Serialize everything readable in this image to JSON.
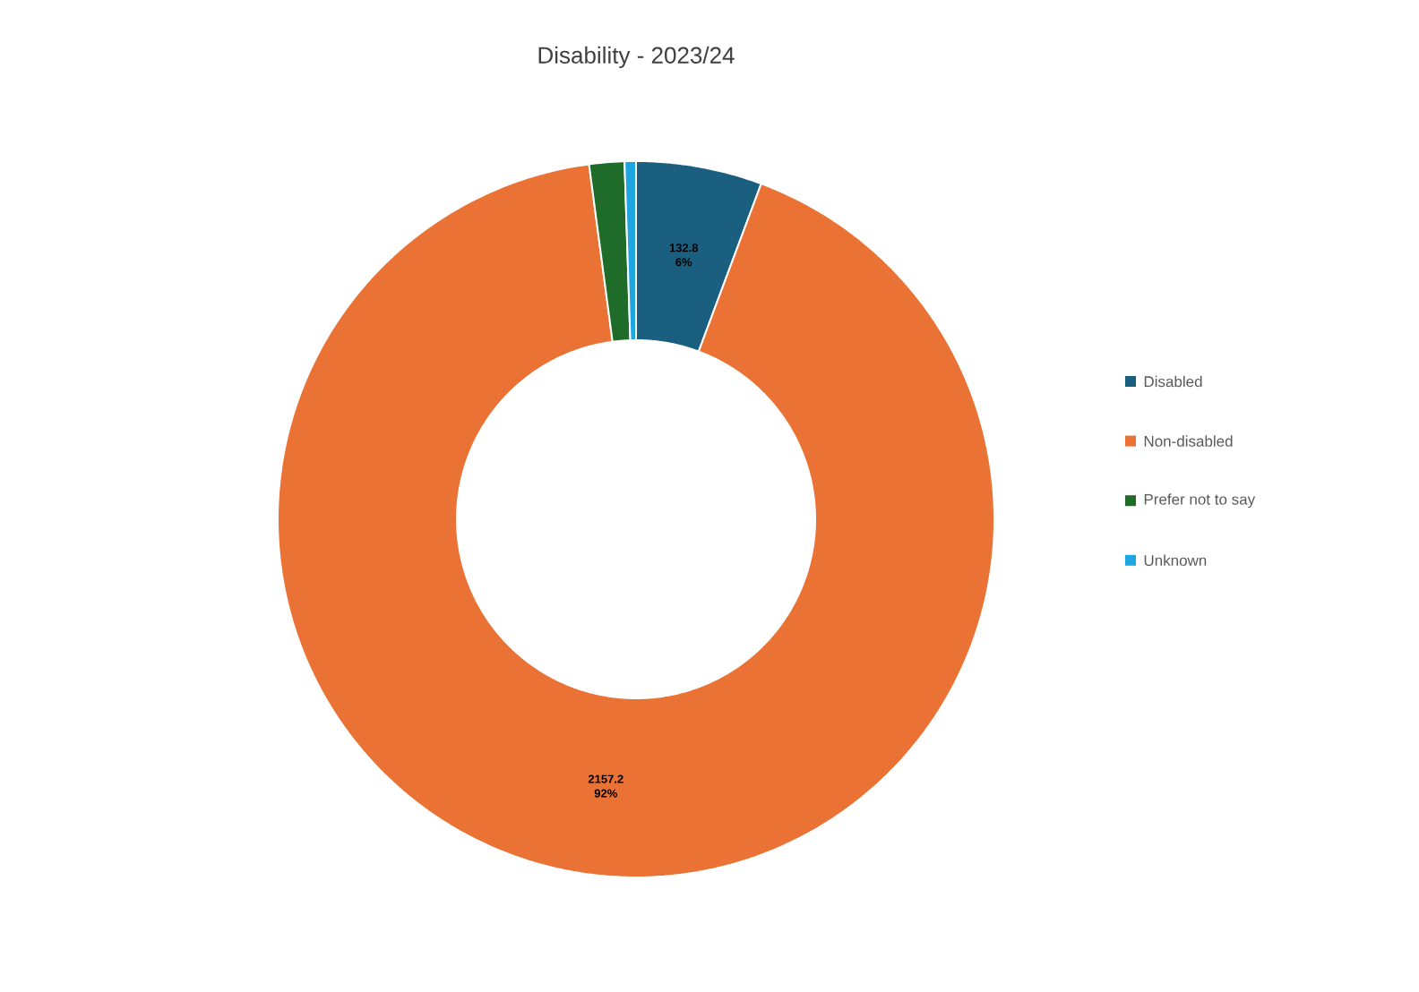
{
  "chart_data": {
    "type": "donut",
    "title": "Disability - 2023/24",
    "categories": [
      "Disabled",
      "Non-disabled",
      "Prefer not to say",
      "Unknown"
    ],
    "values": [
      132.8,
      2157.2,
      37,
      12
    ],
    "colors": [
      "#1b5f80",
      "#ea7234",
      "#1e6b2a",
      "#1ea6e0"
    ],
    "value_labels": [
      "132.8 6%",
      "2157.2 92%",
      null,
      null
    ],
    "legend": "right"
  }
}
